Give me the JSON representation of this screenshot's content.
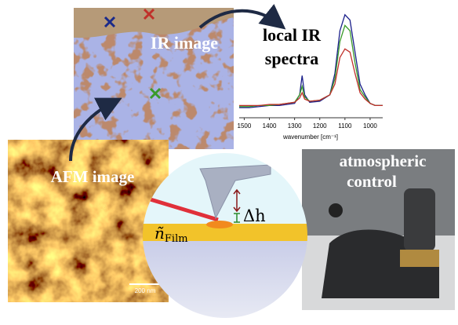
{
  "ir_image": {
    "label": "IR image"
  },
  "spectra": {
    "type": "line",
    "title": [
      "local IR",
      "spectra"
    ],
    "xlabel": "wavenumber [cm⁻¹]",
    "x": [
      1520,
      1480,
      1440,
      1400,
      1360,
      1330,
      1300,
      1280,
      1270,
      1260,
      1240,
      1200,
      1160,
      1140,
      1120,
      1100,
      1080,
      1060,
      1040,
      1020,
      1000,
      980,
      950
    ],
    "xlim": [
      1520,
      950
    ],
    "ylim": [
      0,
      1
    ],
    "xticks": [
      1500,
      1400,
      1300,
      1200,
      1100,
      1000
    ],
    "series": [
      {
        "color": "#1a1f8a",
        "values": [
          0.08,
          0.08,
          0.09,
          0.1,
          0.1,
          0.11,
          0.12,
          0.2,
          0.38,
          0.2,
          0.13,
          0.14,
          0.2,
          0.4,
          0.8,
          0.95,
          0.9,
          0.6,
          0.3,
          0.2,
          0.12,
          0.1,
          0.1
        ]
      },
      {
        "color": "#3a9a2a",
        "values": [
          0.09,
          0.09,
          0.1,
          0.1,
          0.11,
          0.12,
          0.13,
          0.2,
          0.28,
          0.18,
          0.14,
          0.15,
          0.2,
          0.35,
          0.7,
          0.85,
          0.8,
          0.5,
          0.25,
          0.18,
          0.12,
          0.1,
          0.1
        ]
      },
      {
        "color": "#c0302a",
        "values": [
          0.1,
          0.1,
          0.1,
          0.11,
          0.11,
          0.12,
          0.13,
          0.17,
          0.22,
          0.16,
          0.14,
          0.15,
          0.2,
          0.3,
          0.55,
          0.63,
          0.6,
          0.4,
          0.22,
          0.16,
          0.12,
          0.1,
          0.1
        ]
      }
    ]
  },
  "afm_image": {
    "label": "AFM image",
    "scale_bar": "200 nm"
  },
  "setup": {
    "height_label": "Δh",
    "film_symbol": "ñ",
    "film_subscript": "Film"
  },
  "photo": {
    "label": [
      "atmospheric",
      "control"
    ]
  }
}
